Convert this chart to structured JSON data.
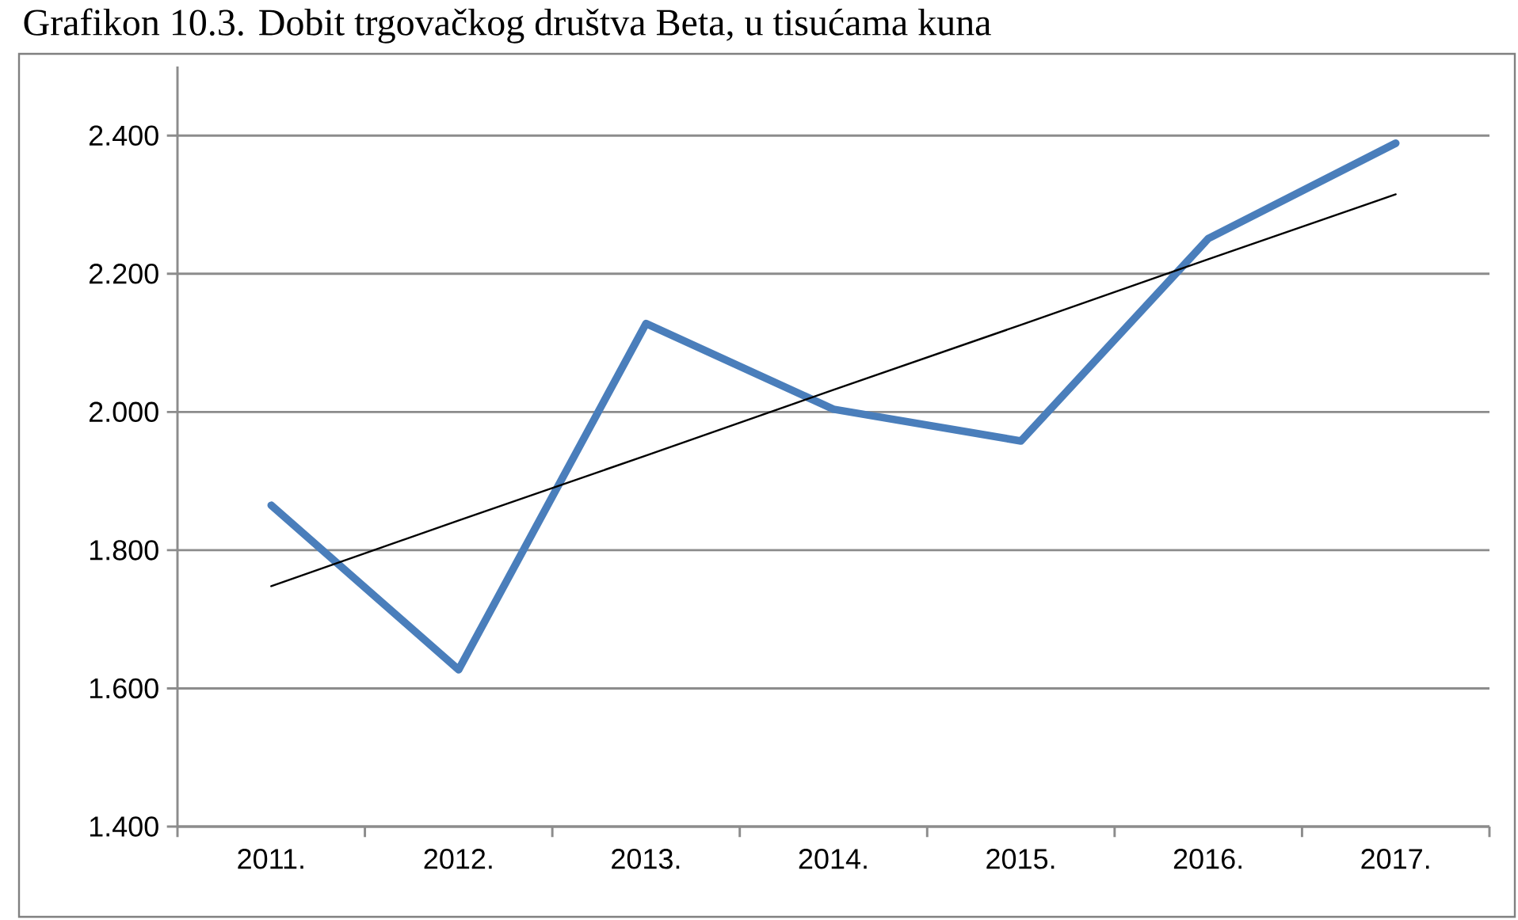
{
  "chart_data": {
    "type": "line",
    "title": "Grafikon 10.3. Dobit trgovačkog društva Beta, u tisućama kuna",
    "categories": [
      "2011.",
      "2012.",
      "2013.",
      "2014.",
      "2015.",
      "2016.",
      "2017."
    ],
    "series": [
      {
        "color": "#4a7ebb",
        "values": [
          1865,
          1627,
          2128,
          2004,
          1958,
          2251,
          2389
        ]
      },
      {
        "color": "#000000",
        "values": [
          1748,
          1843,
          1937,
          2032,
          2126,
          2221,
          2315
        ]
      }
    ],
    "ylim": [
      1400,
      2500
    ],
    "yticks": [
      {
        "value": 1400,
        "label": "1.400"
      },
      {
        "value": 1600,
        "label": "1.600"
      },
      {
        "value": 1800,
        "label": "1.800"
      },
      {
        "value": 2000,
        "label": "2.000"
      },
      {
        "value": 2200,
        "label": "2.200"
      },
      {
        "value": 2400,
        "label": "2.400"
      }
    ],
    "grid": "y",
    "marker": "none",
    "line_style": "solid"
  }
}
